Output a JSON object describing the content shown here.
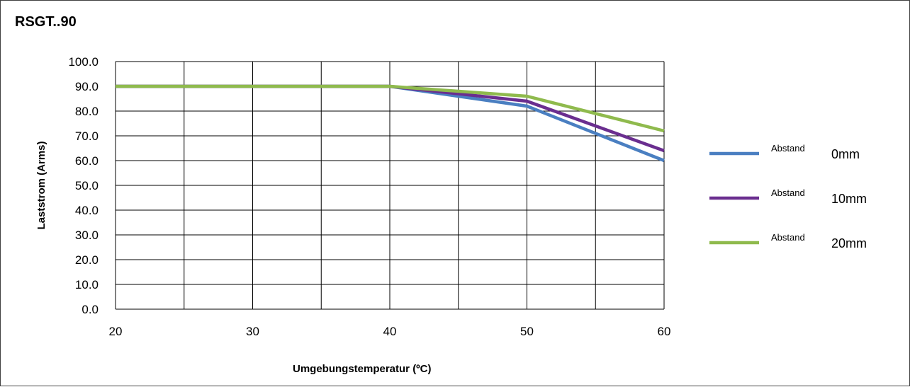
{
  "chart_data": {
    "type": "line",
    "title": "RSGT..90",
    "xlabel": "Umgebungstemperatur (ºC)",
    "ylabel": "Laststrom (Arms)",
    "xlim": [
      20,
      60
    ],
    "ylim": [
      0,
      100
    ],
    "x_ticks": [
      "20",
      "30",
      "40",
      "50",
      "60"
    ],
    "y_ticks": [
      "0.0",
      "10.0",
      "20.0",
      "30.0",
      "40.0",
      "50.0",
      "60.0",
      "70.0",
      "80.0",
      "90.0",
      "100.0"
    ],
    "grid": true,
    "legend_position": "right",
    "series": [
      {
        "name_prefix": "Abstand",
        "name_suffix": "0mm",
        "color": "#4a7fc1",
        "x": [
          20,
          40,
          50,
          60
        ],
        "y": [
          90,
          90,
          82,
          60
        ]
      },
      {
        "name_prefix": "Abstand",
        "name_suffix": "10mm",
        "color": "#6a2e8f",
        "x": [
          20,
          40,
          50,
          60
        ],
        "y": [
          90,
          90,
          84,
          64
        ]
      },
      {
        "name_prefix": "Abstand",
        "name_suffix": "20mm",
        "color": "#8fba4d",
        "x": [
          20,
          40,
          50,
          60
        ],
        "y": [
          90,
          90,
          86,
          72
        ]
      }
    ]
  }
}
